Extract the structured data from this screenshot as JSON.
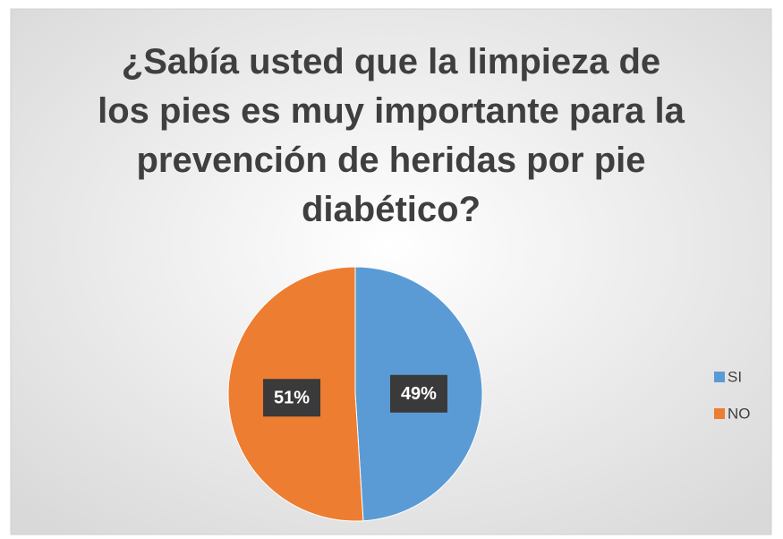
{
  "chart_data": {
    "type": "pie",
    "title": "¿Sabía usted que la limpieza de los pies es muy importante para la prevención de heridas por pie diabético?",
    "categories": [
      "SI",
      "NO"
    ],
    "values": [
      49,
      51
    ],
    "value_labels": [
      "49%",
      "51%"
    ],
    "colors": [
      "#5b9bd5",
      "#ed7d31"
    ],
    "legend": "right"
  }
}
